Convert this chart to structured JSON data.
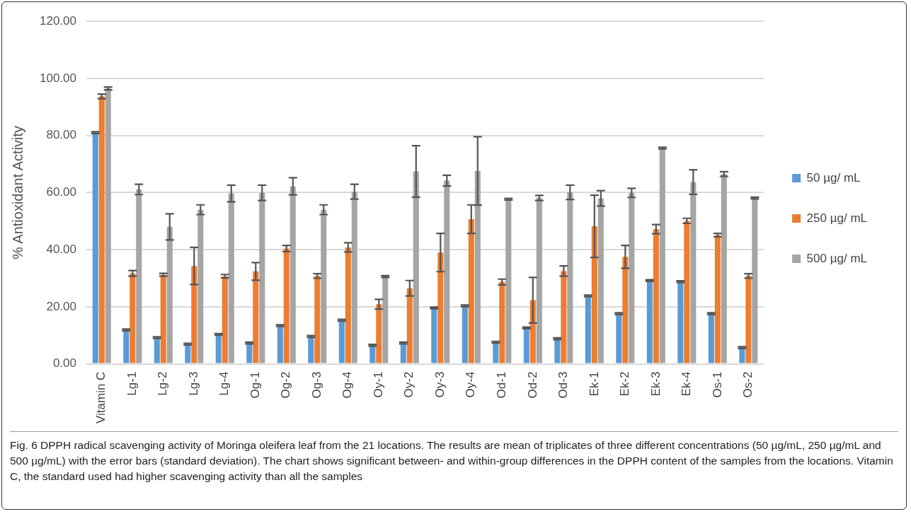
{
  "chart_data": {
    "type": "bar",
    "ylabel": "% Antioxidant Activity",
    "categories": [
      "Vitamin C",
      "Lg-1",
      "Lg-2",
      "Lg-3",
      "Lg-4",
      "Og-1",
      "Og-2",
      "Og-3",
      "Og-4",
      "Oy-1",
      "Oy-2",
      "Oy-3",
      "Oy-4",
      "Od-1",
      "Od-2",
      "Od-3",
      "Ek-1",
      "Ek-2",
      "Ek-3",
      "Ek-4",
      "Os-1",
      "Os-2"
    ],
    "series": [
      {
        "name": "50 µg/ mL",
        "color": "#5b9bd5",
        "values": [
          81.0,
          11.9,
          9.2,
          6.9,
          10.3,
          7.3,
          13.4,
          9.6,
          15.3,
          6.5,
          7.3,
          19.6,
          20.3,
          7.6,
          12.6,
          8.8,
          23.8,
          17.6,
          29.2,
          28.8,
          17.6,
          5.7
        ],
        "errors": [
          0.3,
          0.3,
          0.3,
          0.3,
          0.3,
          0.3,
          0.3,
          0.3,
          0.3,
          0.3,
          0.3,
          0.3,
          0.3,
          0.3,
          0.3,
          0.3,
          0.3,
          0.3,
          0.3,
          0.3,
          0.3,
          0.3
        ]
      },
      {
        "name": "250 µg/ mL",
        "color": "#ed7d31",
        "values": [
          93.7,
          31.7,
          31.2,
          34.3,
          30.7,
          32.4,
          40.4,
          30.8,
          40.8,
          20.9,
          26.5,
          39.0,
          50.7,
          28.7,
          22.3,
          32.5,
          48.2,
          37.5,
          47.2,
          50.1,
          45.1,
          30.8
        ],
        "errors": [
          0.8,
          1.0,
          0.5,
          6.5,
          0.6,
          3.1,
          1.1,
          0.8,
          1.6,
          1.7,
          2.7,
          6.7,
          5.0,
          1.0,
          8.0,
          1.8,
          10.9,
          4.0,
          1.6,
          0.9,
          0.6,
          0.8
        ]
      },
      {
        "name": "500 µg/ mL",
        "color": "#a5a5a5",
        "values": [
          96.5,
          61.1,
          48.0,
          54.0,
          59.7,
          59.9,
          62.2,
          54.0,
          60.3,
          30.6,
          67.4,
          64.2,
          67.6,
          57.7,
          58.1,
          60.1,
          58.0,
          59.9,
          75.6,
          63.7,
          66.5,
          58.1
        ],
        "errors": [
          0.5,
          1.8,
          4.6,
          1.7,
          2.9,
          2.7,
          3.0,
          1.7,
          2.6,
          0.3,
          9.0,
          1.9,
          12.0,
          0.3,
          0.9,
          2.5,
          2.7,
          1.6,
          0.3,
          4.3,
          0.8,
          0.3
        ]
      }
    ],
    "ylim": [
      0,
      120
    ],
    "yticks": [
      {
        "value": 0,
        "label": "0.00"
      },
      {
        "value": 20,
        "label": "20.00"
      },
      {
        "value": 40,
        "label": "40.00"
      },
      {
        "value": 60,
        "label": "60.00"
      },
      {
        "value": 80,
        "label": "80.00"
      },
      {
        "value": 100,
        "label": "100.00"
      },
      {
        "value": 120,
        "label": "120.00"
      }
    ],
    "grid": "y",
    "legend": "right",
    "annotations": [
      "Fig. 6 DPPH radical scavenging activity of Moringa oleifera leaf from the 21 locations. The results are mean of triplicates of three different concentrations (50 µg/mL, 250 µg/mL and 500 µg/mL) with the error bars (standard deviation). The chart shows significant between- and within-group differences in the DPPH content of the samples from the locations. Vitamin C, the standard used had higher scavenging activity than all the samples"
    ]
  }
}
